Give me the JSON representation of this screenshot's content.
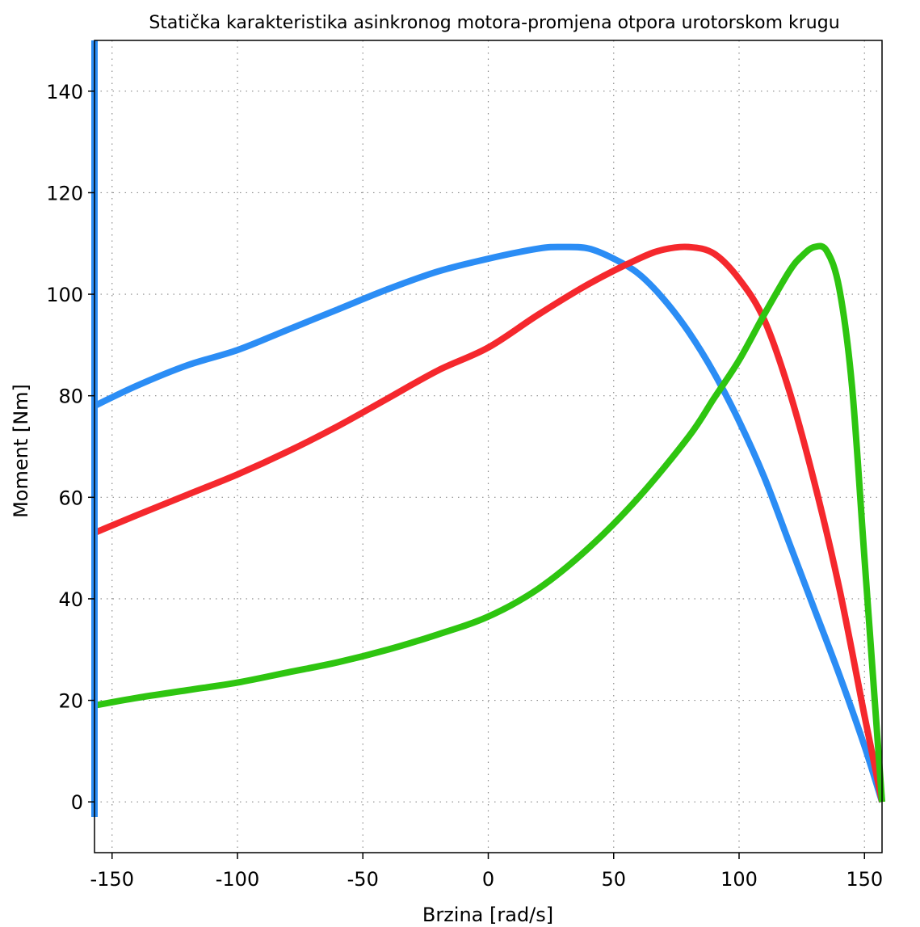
{
  "chart_data": {
    "type": "line",
    "title": "Statička karakteristika asinkronog motora-promjena otpora urotorskom krugu",
    "xlabel": "Brzina [rad/s]",
    "ylabel": "Moment [Nm]",
    "xlim": [
      -157,
      157
    ],
    "ylim": [
      -10,
      150
    ],
    "xticks": [
      -150,
      -100,
      -50,
      0,
      50,
      100,
      150
    ],
    "yticks": [
      0,
      20,
      40,
      60,
      80,
      100,
      120,
      140
    ],
    "grid": true,
    "vertical_line": {
      "x": -157,
      "y_from": -3,
      "y_to": 150,
      "color": "#2b8df5"
    },
    "series": [
      {
        "color": "#2b8df5",
        "x": [
          -157,
          -140,
          -120,
          -100,
          -80,
          -60,
          -40,
          -20,
          0,
          20,
          30,
          40,
          50,
          60,
          70,
          80,
          90,
          100,
          110,
          120,
          130,
          140,
          150,
          157
        ],
        "y": [
          78,
          82,
          86,
          89,
          93,
          97,
          101,
          104.5,
          107,
          109,
          109.3,
          109,
          107,
          104,
          99,
          92.5,
          84.5,
          75,
          64,
          51,
          38,
          25,
          11,
          0
        ]
      },
      {
        "color": "#f5282d",
        "x": [
          -157,
          -140,
          -120,
          -100,
          -80,
          -60,
          -40,
          -20,
          0,
          20,
          40,
          60,
          70,
          80,
          90,
          100,
          110,
          120,
          130,
          140,
          150,
          157
        ],
        "y": [
          53,
          56.5,
          60.5,
          64.5,
          69,
          74,
          79.5,
          85,
          89.5,
          96,
          102,
          107,
          108.8,
          109.3,
          108,
          103,
          95,
          81,
          63,
          42,
          17,
          0
        ]
      },
      {
        "color": "#2ec510",
        "x": [
          -157,
          -140,
          -120,
          -100,
          -80,
          -60,
          -40,
          -20,
          0,
          20,
          40,
          60,
          80,
          90,
          100,
          110,
          120,
          125,
          130,
          135,
          140,
          145,
          150,
          157
        ],
        "y": [
          19,
          20.5,
          22,
          23.5,
          25.5,
          27.5,
          30,
          33,
          36.5,
          42,
          50,
          60,
          72,
          79.5,
          87,
          96,
          104.5,
          107.5,
          109.3,
          108.5,
          101,
          82,
          48,
          0
        ]
      }
    ]
  }
}
